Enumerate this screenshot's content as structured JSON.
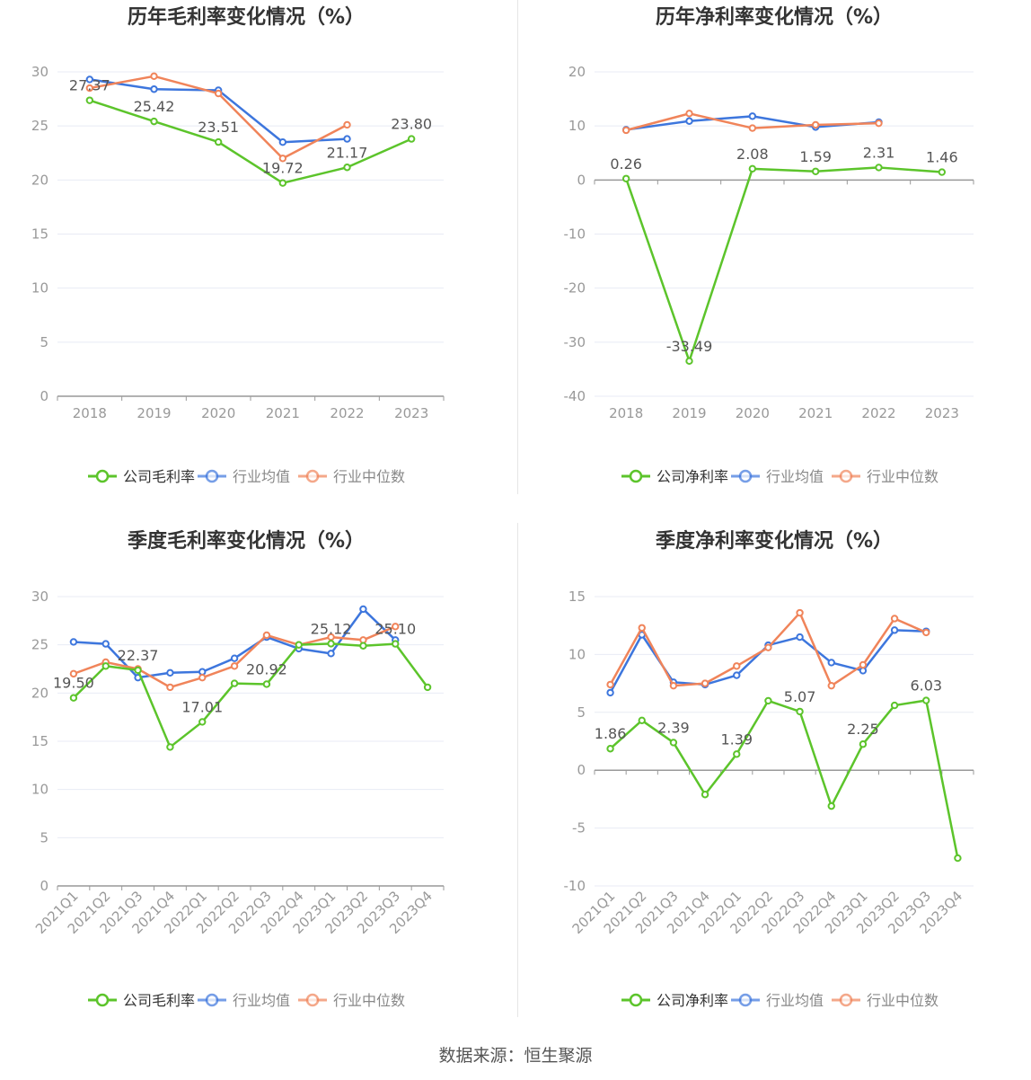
{
  "source_text": "数据来源：恒生聚源",
  "colors": {
    "company": "#5cc42b",
    "avg": "#3d76dd",
    "median": "#f0845a",
    "axis": "#999999",
    "grid": "#e8ebf4",
    "label": "#555555",
    "title": "#333333"
  },
  "chart_data": [
    {
      "type": "line",
      "title": "历年毛利率变化情况（%）",
      "categories": [
        "2018",
        "2019",
        "2020",
        "2021",
        "2022",
        "2023"
      ],
      "ylim": [
        0,
        30
      ],
      "yticks": [
        0,
        5,
        10,
        15,
        20,
        25,
        30
      ],
      "grid": true,
      "legend_position": "bottom-center",
      "series": [
        {
          "name": "公司毛利率",
          "color": "#5cc42b",
          "values": [
            27.37,
            25.42,
            23.51,
            19.72,
            21.17,
            23.8
          ],
          "data_labels": [
            "27.37",
            "25.42",
            "23.51",
            "19.72",
            "21.17",
            "23.80"
          ]
        },
        {
          "name": "行业均值",
          "color": "#3d76dd",
          "values": [
            29.3,
            28.4,
            28.3,
            23.5,
            23.8,
            null
          ]
        },
        {
          "name": "行业中位数",
          "color": "#f0845a",
          "values": [
            28.5,
            29.6,
            28.0,
            22.0,
            25.1,
            null
          ]
        }
      ]
    },
    {
      "type": "line",
      "title": "历年净利率变化情况（%）",
      "categories": [
        "2018",
        "2019",
        "2020",
        "2021",
        "2022",
        "2023"
      ],
      "ylim": [
        -40,
        20
      ],
      "yticks": [
        -40,
        -30,
        -20,
        -10,
        0,
        10,
        20
      ],
      "grid": true,
      "legend_position": "bottom-center",
      "series": [
        {
          "name": "公司净利率",
          "color": "#5cc42b",
          "values": [
            0.26,
            -33.49,
            2.08,
            1.59,
            2.31,
            1.46
          ],
          "data_labels": [
            "0.26",
            "-33.49",
            "2.08",
            "1.59",
            "2.31",
            "1.46"
          ]
        },
        {
          "name": "行业均值",
          "color": "#3d76dd",
          "values": [
            9.3,
            10.9,
            11.8,
            9.8,
            10.7,
            null
          ]
        },
        {
          "name": "行业中位数",
          "color": "#f0845a",
          "values": [
            9.2,
            12.3,
            9.6,
            10.2,
            10.5,
            null
          ]
        }
      ]
    },
    {
      "type": "line",
      "title": "季度毛利率变化情况（%）",
      "categories": [
        "2021Q1",
        "2021Q2",
        "2021Q3",
        "2021Q4",
        "2022Q1",
        "2022Q2",
        "2022Q3",
        "2022Q4",
        "2023Q1",
        "2023Q2",
        "2023Q3",
        "2023Q4"
      ],
      "ylim": [
        0,
        30
      ],
      "yticks": [
        0,
        5,
        10,
        15,
        20,
        25,
        30
      ],
      "grid": true,
      "legend_position": "bottom-center",
      "series": [
        {
          "name": "公司毛利率",
          "color": "#5cc42b",
          "values": [
            19.5,
            22.8,
            22.37,
            14.4,
            17.01,
            21.0,
            20.92,
            25.0,
            25.12,
            24.9,
            25.1,
            20.6
          ],
          "data_labels": [
            "19.50",
            "",
            "22.37",
            "",
            "17.01",
            "",
            "20.92",
            "",
            "25.12",
            "",
            "25.10",
            ""
          ]
        },
        {
          "name": "行业均值",
          "color": "#3d76dd",
          "values": [
            25.3,
            25.1,
            21.6,
            22.1,
            22.2,
            23.6,
            25.8,
            24.6,
            24.1,
            28.7,
            25.5,
            null
          ]
        },
        {
          "name": "行业中位数",
          "color": "#f0845a",
          "values": [
            22.0,
            23.2,
            22.5,
            20.6,
            21.6,
            22.8,
            26.0,
            25.0,
            25.8,
            25.5,
            26.9,
            null
          ]
        }
      ]
    },
    {
      "type": "line",
      "title": "季度净利率变化情况（%）",
      "categories": [
        "2021Q1",
        "2021Q2",
        "2021Q3",
        "2021Q4",
        "2022Q1",
        "2022Q2",
        "2022Q3",
        "2022Q4",
        "2023Q1",
        "2023Q2",
        "2023Q3",
        "2023Q4"
      ],
      "ylim": [
        -10,
        15
      ],
      "yticks": [
        -10,
        -5,
        0,
        5,
        10,
        15
      ],
      "grid": true,
      "legend_position": "bottom-center",
      "series": [
        {
          "name": "公司净利率",
          "color": "#5cc42b",
          "values": [
            1.86,
            4.3,
            2.39,
            -2.1,
            1.39,
            6.0,
            5.07,
            -3.1,
            2.25,
            5.6,
            6.03,
            -7.6
          ],
          "data_labels": [
            "1.86",
            "",
            "2.39",
            "",
            "1.39",
            "",
            "5.07",
            "",
            "2.25",
            "",
            "6.03",
            ""
          ]
        },
        {
          "name": "行业均值",
          "color": "#3d76dd",
          "values": [
            6.7,
            11.7,
            7.6,
            7.4,
            8.2,
            10.8,
            11.5,
            9.3,
            8.6,
            12.1,
            12.0,
            null
          ]
        },
        {
          "name": "行业中位数",
          "color": "#f0845a",
          "values": [
            7.4,
            12.3,
            7.3,
            7.5,
            9.0,
            10.6,
            13.6,
            7.3,
            9.1,
            13.1,
            11.9,
            null
          ]
        }
      ]
    }
  ]
}
